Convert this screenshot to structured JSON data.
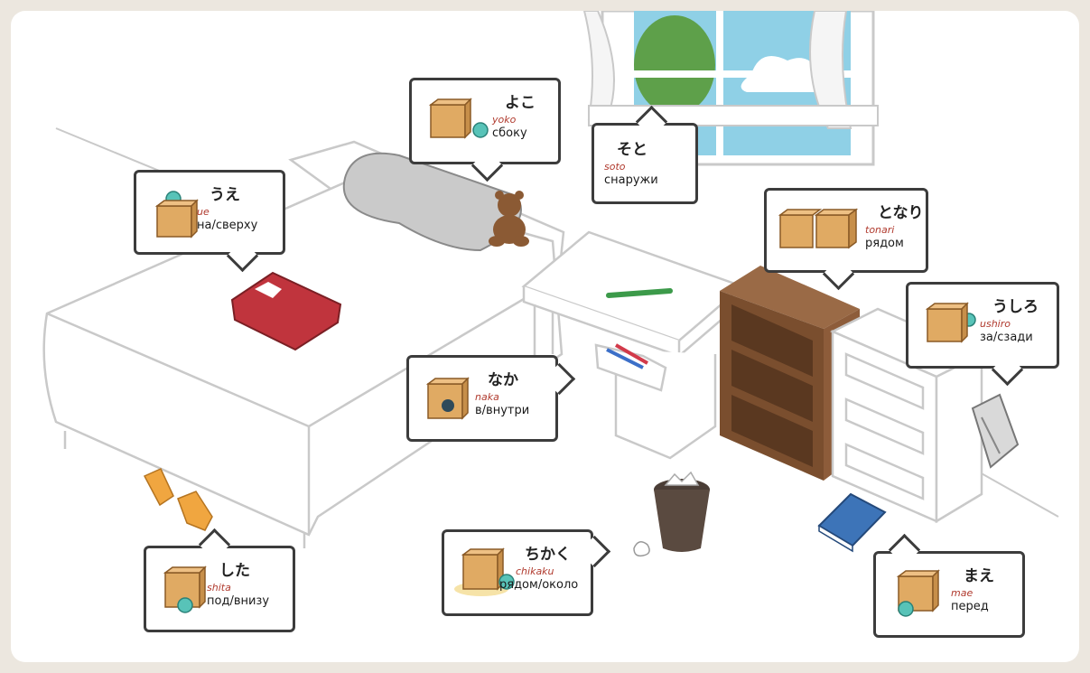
{
  "colors": {
    "line": "#c9c9c9",
    "box": "#e0aa63",
    "ball": "#58c3b8",
    "callout_border": "#3c3c3c",
    "romaji": "#b03a2e"
  },
  "callouts": {
    "ue": {
      "kana": "うえ",
      "romaji": "ue",
      "meaning": "на/сверху"
    },
    "yoko": {
      "kana": "よこ",
      "romaji": "yoko",
      "meaning": "сбоку"
    },
    "soto": {
      "kana": "そと",
      "romaji": "soto",
      "meaning": "снаружи"
    },
    "tonari": {
      "kana": "となり",
      "romaji": "tonari",
      "meaning": "рядом"
    },
    "ushiro": {
      "kana": "うしろ",
      "romaji": "ushiro",
      "meaning": "за/сзади"
    },
    "naka": {
      "kana": "なか",
      "romaji": "naka",
      "meaning": "в/внутри"
    },
    "shita": {
      "kana": "した",
      "romaji": "shita",
      "meaning": "под/внизу"
    },
    "chikaku": {
      "kana": "ちかく",
      "romaji": "chikaku",
      "meaning": "рядом/около"
    },
    "mae": {
      "kana": "まえ",
      "romaji": "mae",
      "meaning": "перед"
    }
  }
}
